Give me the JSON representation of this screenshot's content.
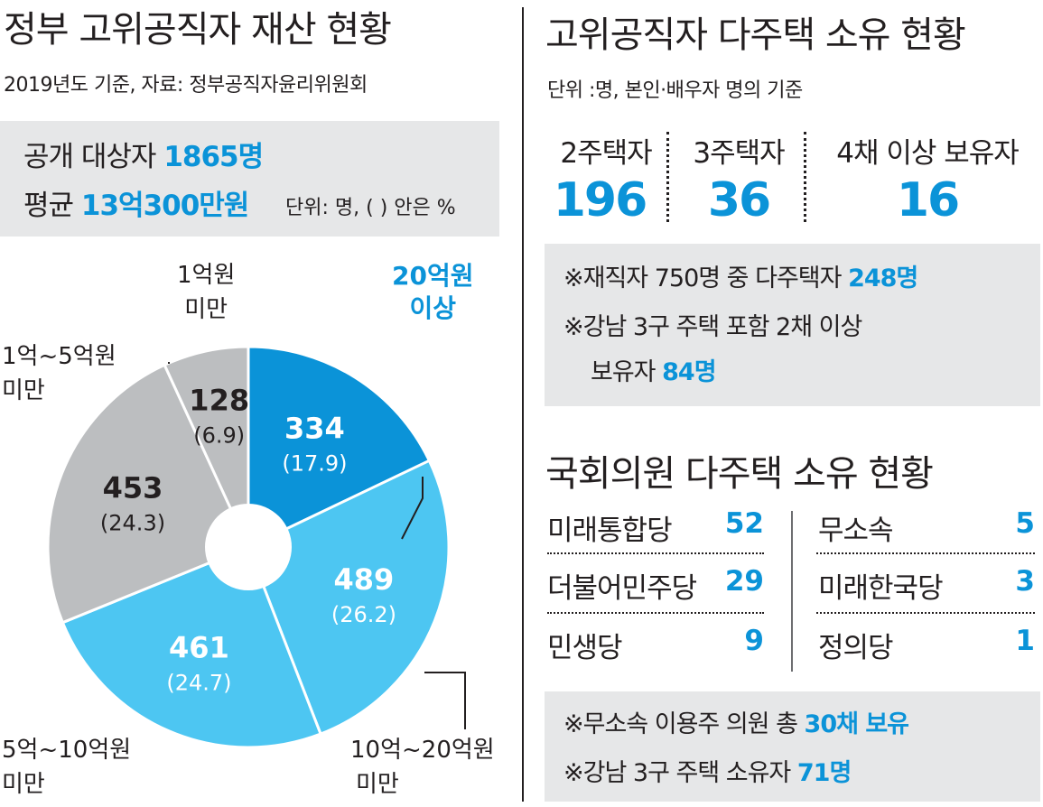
{
  "left": {
    "title": "정부 고위공직자 재산 현황",
    "subtitle": "2019년도 기준, 자료: 정부공직자윤리위원회",
    "summary": {
      "disclosed_label": "공개 대상자",
      "disclosed_value": "1865명",
      "average_label": "평균",
      "average_value": "13억300만원",
      "unit": "단위: 명, ( ) 안은 %"
    }
  },
  "chart_data": {
    "type": "pie",
    "donut": true,
    "slices": [
      {
        "label": "20억원 이상",
        "value": 334,
        "percent": 17.9,
        "color": "#0b93d8",
        "value_text": "334",
        "percent_text": "(17.9)"
      },
      {
        "label": "10억~20억원 미만",
        "value": 489,
        "percent": 26.2,
        "color": "#4dc6f2",
        "value_text": "489",
        "percent_text": "(26.2)"
      },
      {
        "label": "5억~10억원 미만",
        "value": 461,
        "percent": 24.7,
        "color": "#4dc6f2",
        "value_text": "461",
        "percent_text": "(24.7)"
      },
      {
        "label": "1억~5억원 미만",
        "value": 453,
        "percent": 24.3,
        "color": "#bcbec0",
        "value_text": "453",
        "percent_text": "(24.3)"
      },
      {
        "label": "1억원 미만",
        "value": 128,
        "percent": 6.9,
        "color": "#bcbec0",
        "value_text": "128",
        "percent_text": "(6.9)"
      }
    ],
    "labels": {
      "s20_line1": "20억원",
      "s20_line2": "이상",
      "s10_20_line1": "10억~20억원",
      "s10_20_line2": "미만",
      "s5_10_line1": "5억~10억원",
      "s5_10_line2": "미만",
      "s1_5_line1": "1억~5억원",
      "s1_5_line2": "미만",
      "s1_line1": "1억원",
      "s1_line2": "미만"
    }
  },
  "right": {
    "title": "고위공직자 다주택 소유 현황",
    "subtitle": "단위 :명, 본인·배우자 명의 기준",
    "stats": [
      {
        "label": "2주택자",
        "value": "196"
      },
      {
        "label": "3주택자",
        "value": "36"
      },
      {
        "label": "4채 이상 보유자",
        "value": "16"
      }
    ],
    "notes": {
      "n1_text": "※재직자 750명 중 다주택자",
      "n1_value": "248명",
      "n2_line1": "※강남 3구 주택 포함 2채 이상",
      "n2_line2": "보유자",
      "n2_value": "84명"
    },
    "assembly_title": "국회의원 다주택 소유 현황",
    "parties_left": [
      {
        "name": "미래통합당",
        "value": "52"
      },
      {
        "name": "더불어민주당",
        "value": "29"
      },
      {
        "name": "민생당",
        "value": "9"
      }
    ],
    "parties_right": [
      {
        "name": "무소속",
        "value": "5"
      },
      {
        "name": "미래한국당",
        "value": "3"
      },
      {
        "name": "정의당",
        "value": "1"
      }
    ],
    "notes2": {
      "a_text": "※무소속 이용주 의원 총",
      "a_value": "30채 보유",
      "b_text": "※강남 3구 주택 소유자",
      "b_value": "71명"
    }
  }
}
